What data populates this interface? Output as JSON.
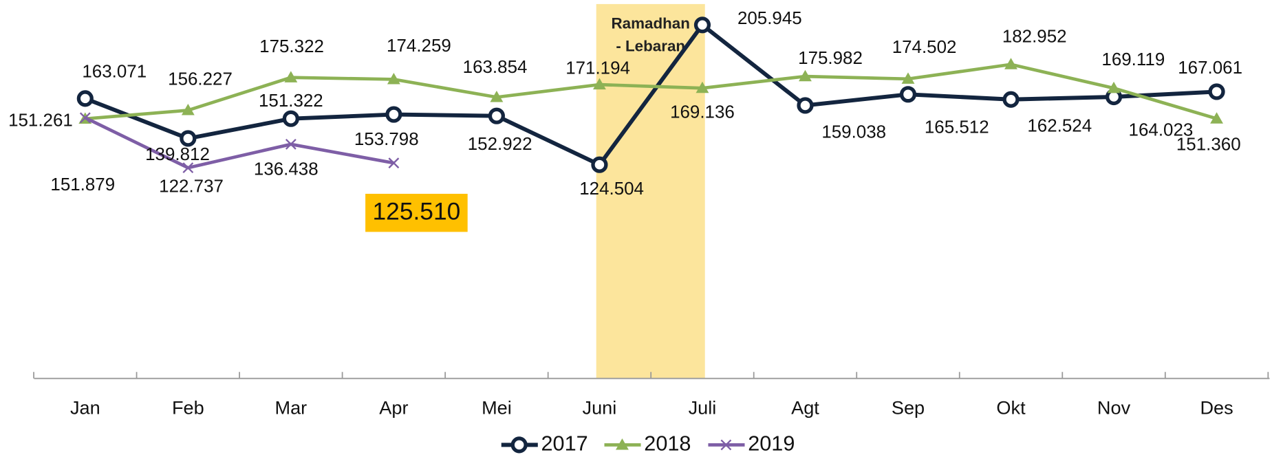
{
  "chart_data": {
    "type": "line",
    "categories": [
      "Jan",
      "Feb",
      "Mar",
      "Apr",
      "Mei",
      "Juni",
      "Juli",
      "Agt",
      "Sep",
      "Okt",
      "Nov",
      "Des"
    ],
    "series": [
      {
        "name": "2017",
        "color": "#13253f",
        "marker": "circle",
        "values": [
          163.071,
          139.812,
          151.322,
          153.798,
          152.922,
          124.504,
          205.945,
          159.038,
          165.512,
          162.524,
          164.023,
          167.061
        ],
        "value_labels": [
          "163.071",
          "139.812",
          "151.322",
          "153.798",
          "152.922",
          "124.504",
          "205.945",
          "159.038",
          "165.512",
          "162.524",
          "164.023",
          "167.061"
        ]
      },
      {
        "name": "2018",
        "color": "#8db255",
        "marker": "triangle",
        "values": [
          151.261,
          156.227,
          175.322,
          174.259,
          163.854,
          171.194,
          169.136,
          175.982,
          174.502,
          182.952,
          169.119,
          151.36
        ],
        "value_labels": [
          "151.261",
          "156.227",
          "175.322",
          "174.259",
          "163.854",
          "171.194",
          "169.136",
          "175.982",
          "174.502",
          "182.952",
          "169.119",
          "151.360"
        ]
      },
      {
        "name": "2019",
        "color": "#7e5ea6",
        "marker": "x",
        "values": [
          151.879,
          122.737,
          136.438,
          125.51,
          null,
          null,
          null,
          null,
          null,
          null,
          null,
          null
        ],
        "value_labels": [
          "151.879",
          "122.737",
          "136.438",
          "125.510",
          null,
          null,
          null,
          null,
          null,
          null,
          null,
          null
        ]
      }
    ],
    "ylim": [
      0,
      220
    ],
    "annotations": [
      "Ramadhan",
      "- Lebaran"
    ],
    "legend": "bottom"
  }
}
